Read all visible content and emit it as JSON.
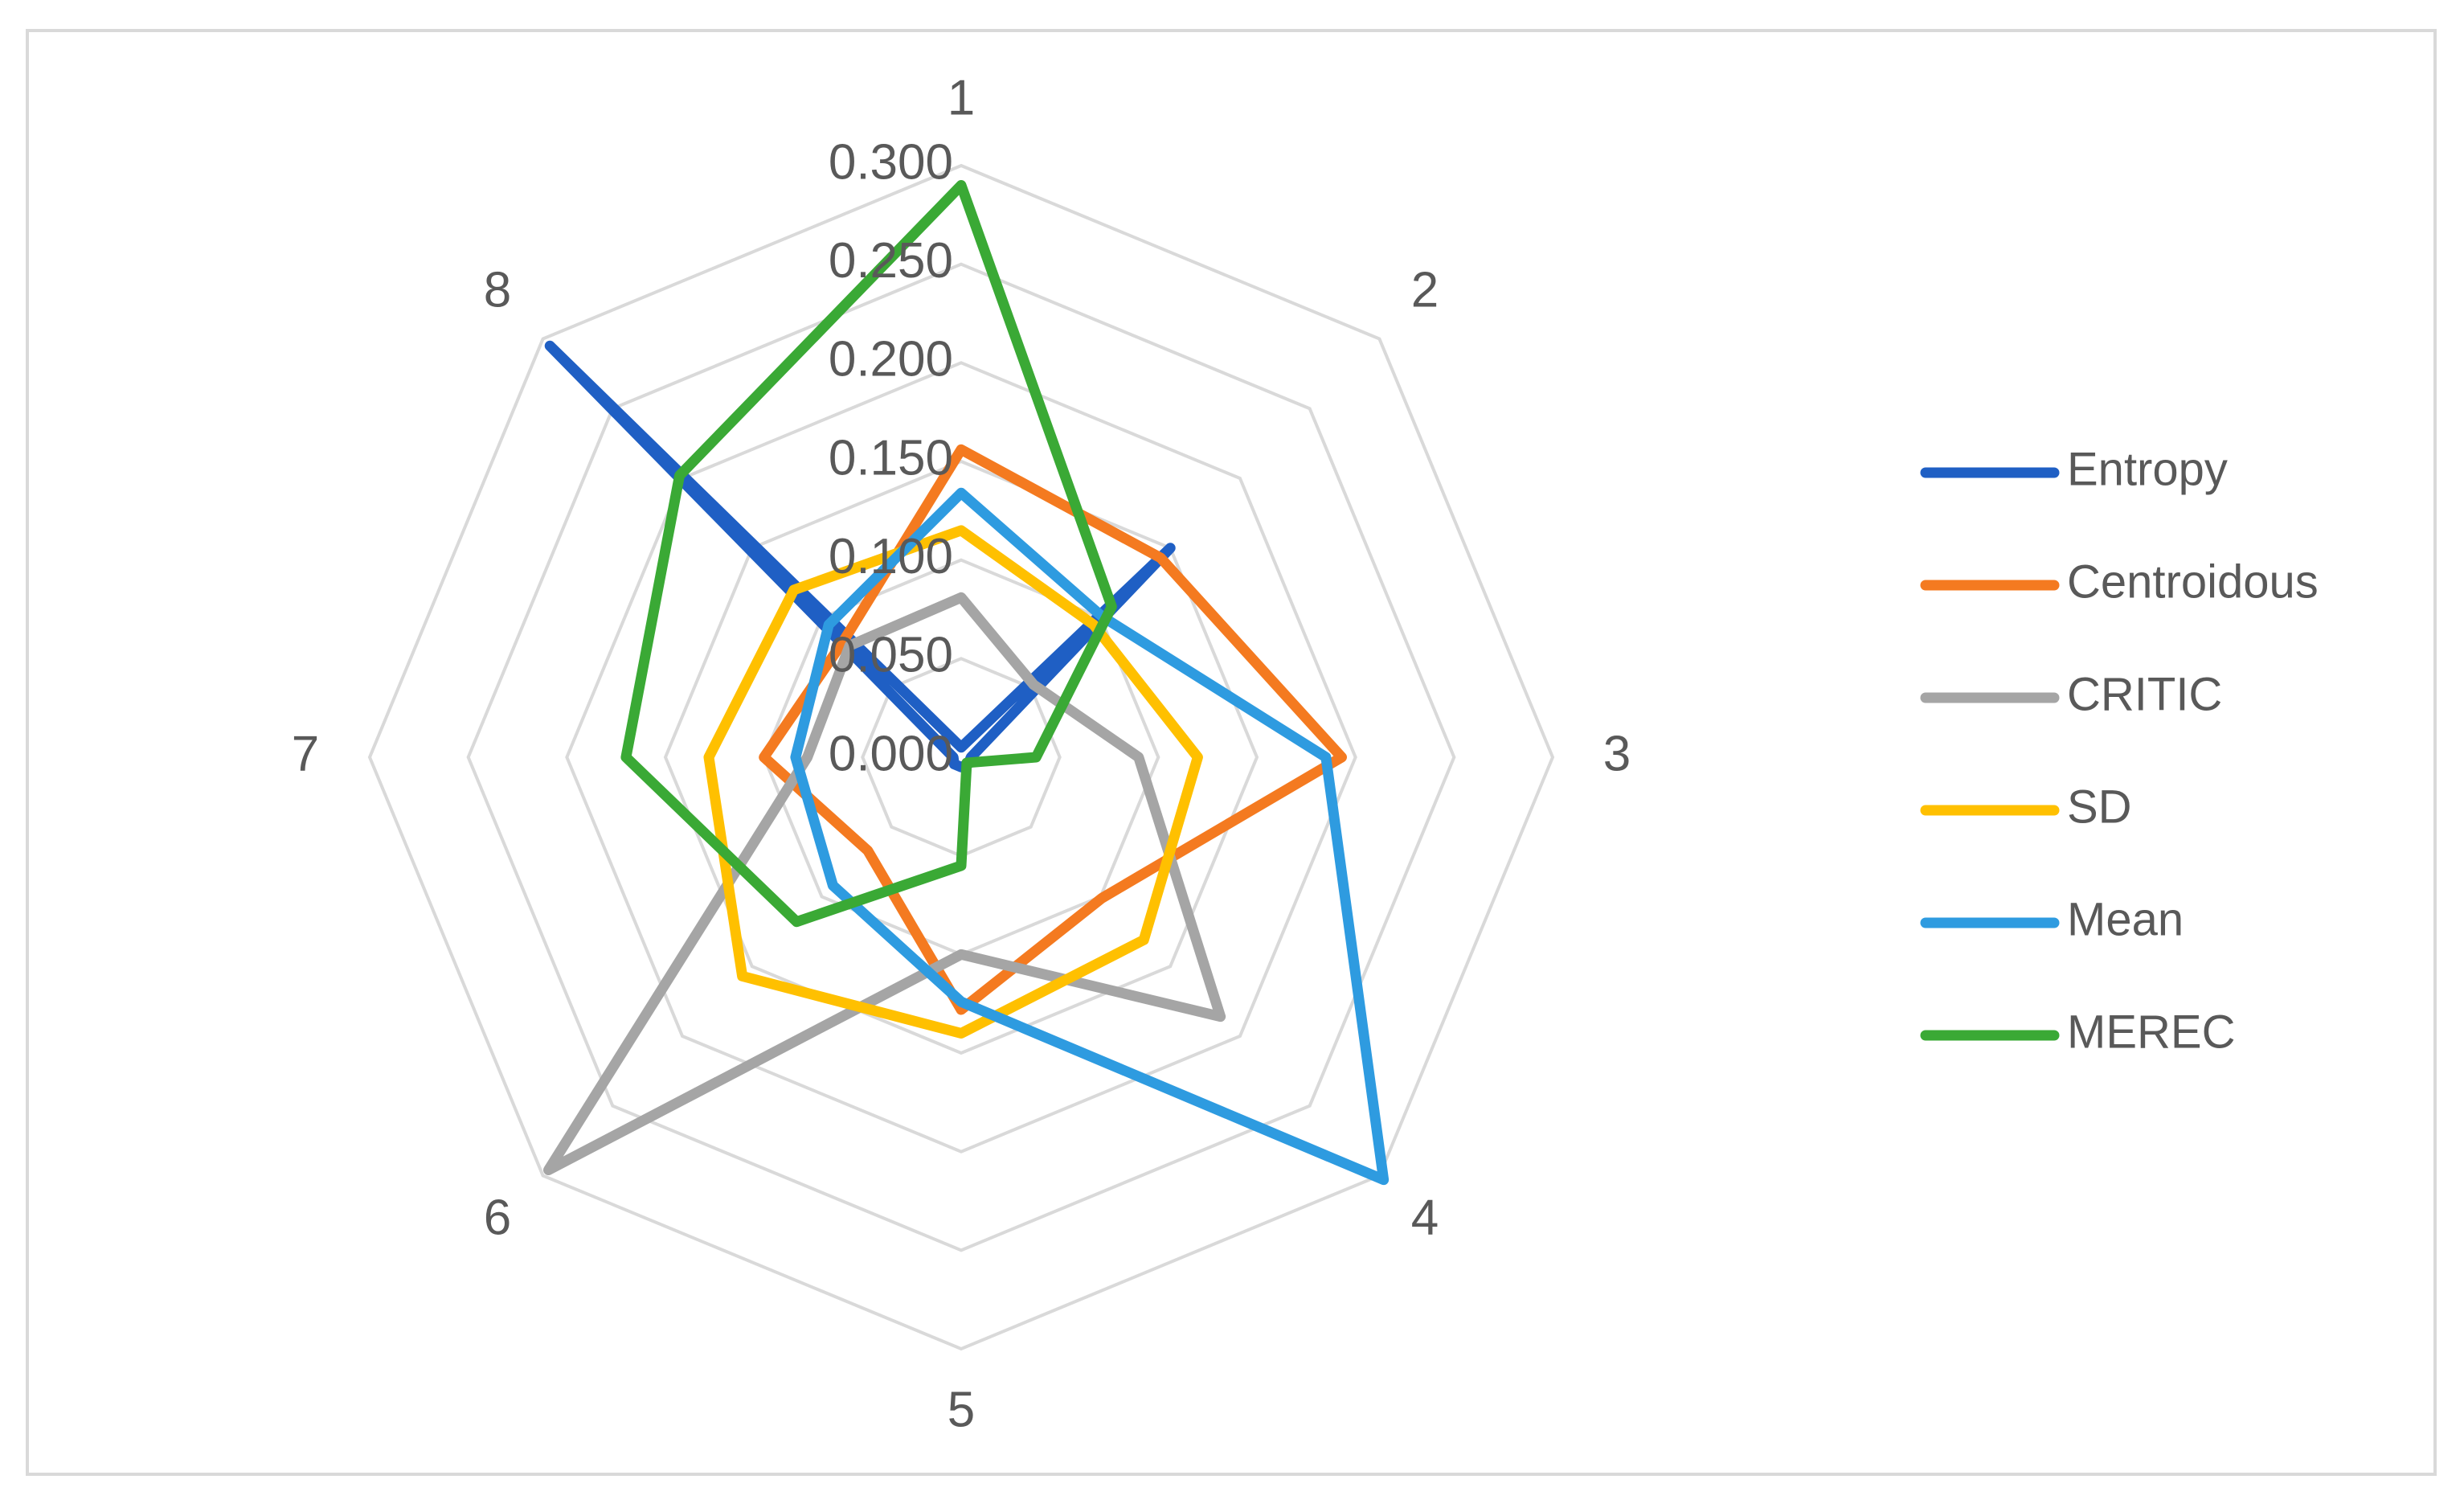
{
  "chart_data": {
    "type": "radar",
    "categories": [
      "1",
      "2",
      "3",
      "4",
      "5",
      "6",
      "7",
      "8"
    ],
    "rlim": [
      0,
      0.3
    ],
    "ticks": [
      "0.000",
      "0.050",
      "0.100",
      "0.150",
      "0.200",
      "0.250",
      "0.300"
    ],
    "grid": true,
    "legend_position": "right",
    "series": [
      {
        "name": "Entropy",
        "color": "#1f5fc4",
        "values": [
          0.005,
          0.15,
          0.005,
          0.005,
          0.005,
          0.005,
          0.004,
          0.295
        ]
      },
      {
        "name": "Centroidous",
        "color": "#f47a20",
        "values": [
          0.156,
          0.143,
          0.193,
          0.101,
          0.128,
          0.067,
          0.1,
          0.084
        ]
      },
      {
        "name": "CRITIC",
        "color": "#a5a5a5",
        "values": [
          0.081,
          0.052,
          0.09,
          0.186,
          0.1,
          0.296,
          0.078,
          0.08
        ]
      },
      {
        "name": "SD",
        "color": "#ffc000",
        "values": [
          0.115,
          0.095,
          0.12,
          0.131,
          0.14,
          0.157,
          0.128,
          0.12
        ]
      },
      {
        "name": "Mean",
        "color": "#2e9be0",
        "values": [
          0.134,
          0.101,
          0.185,
          0.303,
          0.124,
          0.092,
          0.084,
          0.095
        ]
      },
      {
        "name": "MEREC",
        "color": "#3aa935",
        "values": [
          0.29,
          0.108,
          0.038,
          0.004,
          0.055,
          0.118,
          0.17,
          0.202
        ]
      }
    ]
  }
}
